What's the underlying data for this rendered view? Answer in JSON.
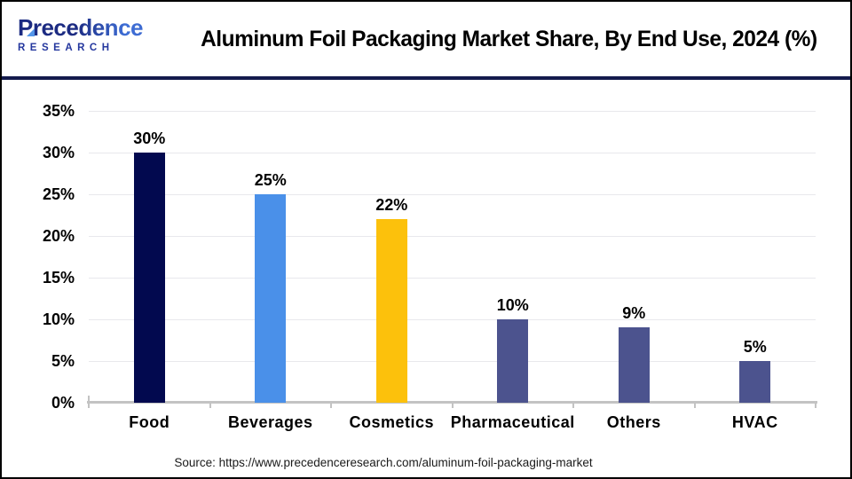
{
  "header": {
    "logo": {
      "line1": "Precedence",
      "line2": "RESEARCH"
    },
    "title": "Aluminum Foil Packaging Market Share, By End Use, 2024 (%)"
  },
  "chart_data": {
    "type": "bar",
    "title": "Aluminum Foil Packaging Market Share, By End Use, 2024 (%)",
    "categories": [
      "Food",
      "Beverages",
      "Cosmetics",
      "Pharmaceutical",
      "Others",
      "HVAC"
    ],
    "values": [
      30,
      25,
      22,
      10,
      9,
      5
    ],
    "value_labels": [
      "30%",
      "25%",
      "22%",
      "10%",
      "9%",
      "5%"
    ],
    "bar_colors": [
      "#02094F",
      "#4A90E9",
      "#FCC10C",
      "#4C538E",
      "#4C538E",
      "#4C538E"
    ],
    "xlabel": "",
    "ylabel": "",
    "ylim": [
      0,
      35
    ],
    "ytick_step": 5,
    "ytick_labels": [
      "0%",
      "5%",
      "10%",
      "15%",
      "20%",
      "25%",
      "30%",
      "35%"
    ],
    "grid": true,
    "legend": false,
    "colors": {
      "grid": "#e8e8ec",
      "axis": "#c3c3c3",
      "divider": "#141b4d",
      "label_text": "#000000"
    }
  },
  "footer": {
    "source": "Source: https://www.precedenceresearch.com/aluminum-foil-packaging-market"
  }
}
